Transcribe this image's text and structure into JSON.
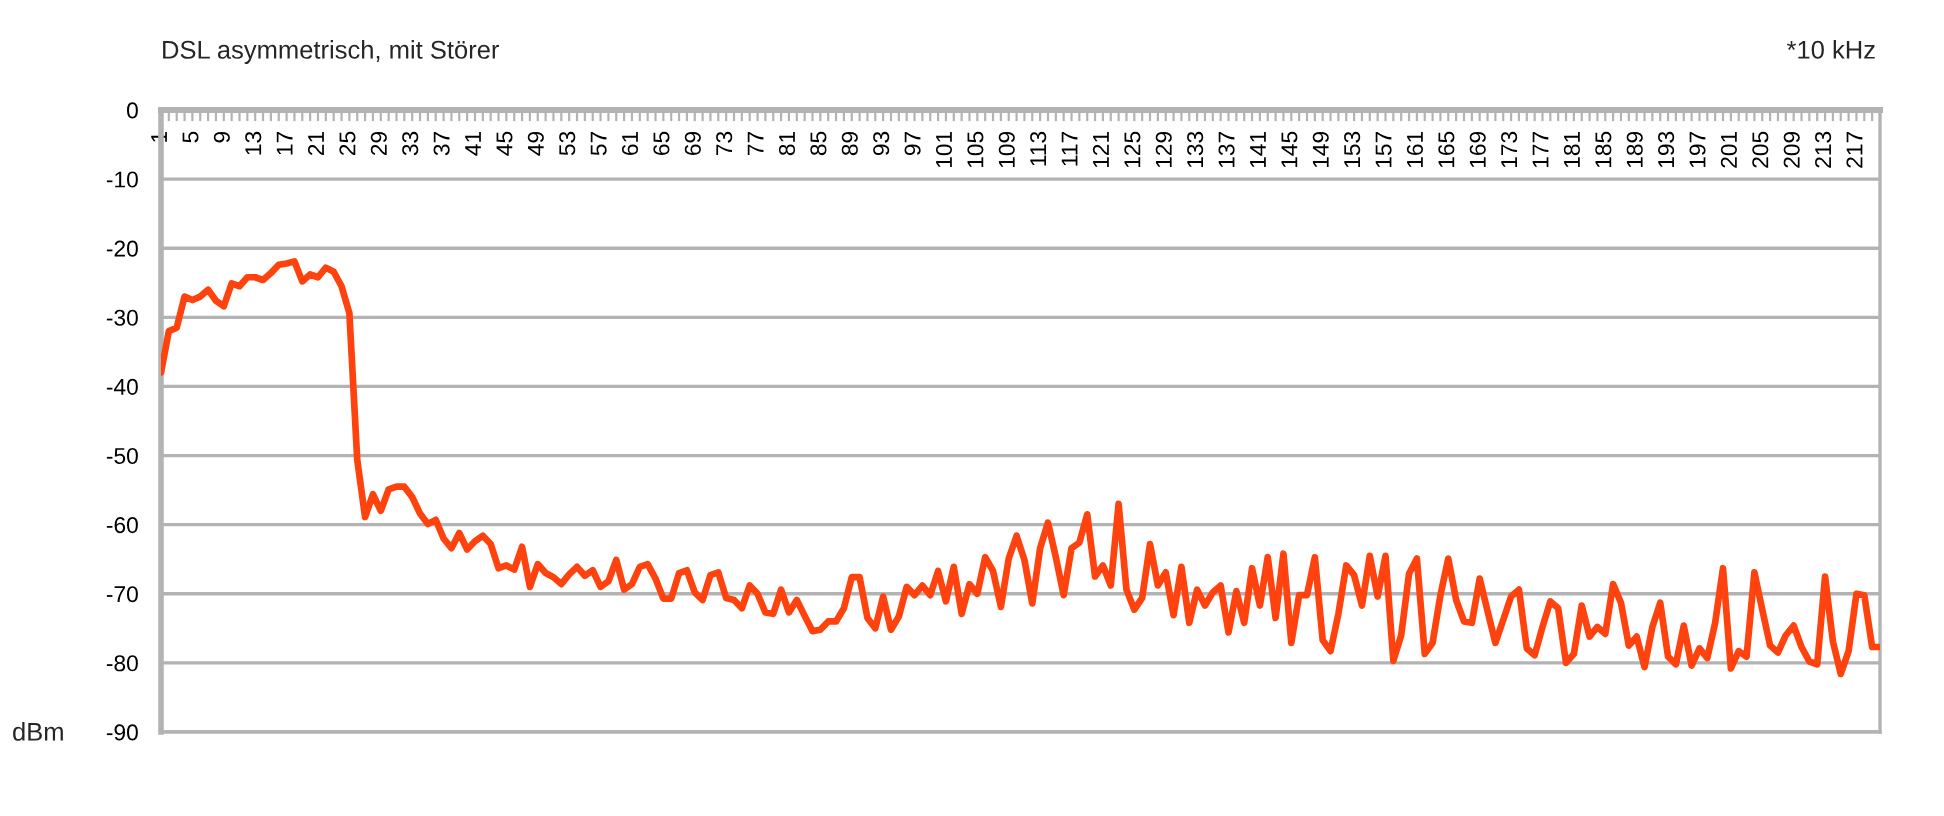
{
  "chart_data": {
    "type": "line",
    "title": "DSL asymmetrisch, mit Störer",
    "xlabel": "*10 kHz",
    "ylabel": "dBm",
    "categories": [
      "1",
      null,
      null,
      null,
      "5",
      null,
      null,
      null,
      "9",
      null,
      null,
      null,
      "13",
      null,
      null,
      null,
      "17",
      null,
      null,
      null,
      "21",
      null,
      null,
      null,
      "25",
      null,
      null,
      null,
      "29",
      null,
      null,
      null,
      "33",
      null,
      null,
      null,
      "37",
      null,
      null,
      null,
      "41",
      null,
      null,
      null,
      "45",
      null,
      null,
      null,
      "49",
      null,
      null,
      null,
      "53",
      null,
      null,
      null,
      "57",
      null,
      null,
      null,
      "61",
      null,
      null,
      null,
      "65",
      null,
      null,
      null,
      "69",
      null,
      null,
      null,
      "73",
      null,
      null,
      null,
      "77",
      null,
      null,
      null,
      "81",
      null,
      null,
      null,
      "85",
      null,
      null,
      null,
      "89",
      null,
      null,
      null,
      "93",
      null,
      null,
      null,
      "97",
      null,
      null,
      null,
      "101",
      null,
      null,
      null,
      "105",
      null,
      null,
      null,
      "109",
      null,
      null,
      null,
      "113",
      null,
      null,
      null,
      "117",
      null,
      null,
      null,
      "121",
      null,
      null,
      null,
      "125",
      null,
      null,
      null,
      "129",
      null,
      null,
      null,
      "133",
      null,
      null,
      null,
      "137",
      null,
      null,
      null,
      "141",
      null,
      null,
      null,
      "145",
      null,
      null,
      null,
      "149",
      null,
      null,
      null,
      "153",
      null,
      null,
      null,
      "157",
      null,
      null,
      null,
      "161",
      null,
      null,
      null,
      "165",
      null,
      null,
      null,
      "169",
      null,
      null,
      null,
      "173",
      null,
      null,
      null,
      "177",
      null,
      null,
      null,
      "181",
      null,
      null,
      null,
      "185",
      null,
      null,
      null,
      "189",
      null,
      null,
      null,
      "193",
      null,
      null,
      null,
      "197",
      null,
      null,
      null,
      "201",
      null,
      null,
      null,
      "205",
      null,
      null,
      null,
      "209",
      null,
      null,
      null,
      "213",
      null,
      null,
      null,
      "217",
      null,
      null,
      null
    ],
    "series": [
      {
        "color": "#ff420e",
        "values": [
          -38,
          -32,
          -31.5,
          -27,
          -27.5,
          -27,
          -26,
          -27.6,
          -28.4,
          -25.1,
          -25.5,
          -24.2,
          -24.2,
          -24.6,
          -23.6,
          -22.4,
          -22.2,
          -21.9,
          -24.8,
          -23.8,
          -24.2,
          -22.8,
          -23.4,
          -25.5,
          -29.4,
          -50.6,
          -58.9,
          -55.6,
          -58,
          -54.9,
          -54.5,
          -54.5,
          -56,
          -58.4,
          -59.9,
          -59.3,
          -62,
          -63.4,
          -61.2,
          -63.6,
          -62.4,
          -61.6,
          -62.8,
          -66.3,
          -65.9,
          -66.5,
          -63.2,
          -69,
          -65.7,
          -67,
          -67.6,
          -68.6,
          -67.2,
          -66.1,
          -67.4,
          -66.6,
          -69,
          -68.2,
          -65.1,
          -69.4,
          -68.6,
          -66.1,
          -65.7,
          -67.8,
          -70.7,
          -70.7,
          -67,
          -66.6,
          -69.8,
          -70.9,
          -67.3,
          -66.9,
          -70.6,
          -70.9,
          -72.1,
          -68.8,
          -70,
          -72.7,
          -72.9,
          -69.4,
          -72.7,
          -70.9,
          -73.2,
          -75.4,
          -75.2,
          -74,
          -74,
          -72.1,
          -67.6,
          -67.6,
          -73.5,
          -75,
          -70.4,
          -75.2,
          -73.3,
          -69,
          -70.2,
          -68.8,
          -70.2,
          -66.7,
          -71.1,
          -66.1,
          -72.9,
          -68.6,
          -70,
          -64.7,
          -66.7,
          -71.9,
          -64.9,
          -61.6,
          -65.1,
          -71.4,
          -63.4,
          -59.7,
          -64.7,
          -70.2,
          -63.4,
          -62.6,
          -58.5,
          -67.5,
          -65.9,
          -68.8,
          -57,
          -69.4,
          -72.3,
          -70.6,
          -62.8,
          -68.8,
          -66.9,
          -73.1,
          -66.1,
          -74.2,
          -69.4,
          -71.7,
          -69.8,
          -68.8,
          -75.6,
          -69.6,
          -74.2,
          -66.3,
          -71.7,
          -64.7,
          -73.5,
          -64.2,
          -77.1,
          -70.2,
          -70.2,
          -64.7,
          -76.7,
          -78.3,
          -72.9,
          -65.9,
          -67.3,
          -71.7,
          -64.5,
          -70.4,
          -64.5,
          -79.7,
          -76,
          -67.1,
          -64.9,
          -78.7,
          -77.1,
          -70.2,
          -64.9,
          -70.9,
          -74,
          -74.2,
          -67.8,
          -72.5,
          -77.1,
          -73.8,
          -70.4,
          -69.4,
          -77.9,
          -78.9,
          -74.8,
          -71.1,
          -72.1,
          -80,
          -78.7,
          -71.7,
          -76.2,
          -74.8,
          -75.8,
          -68.6,
          -71.3,
          -77.5,
          -76.2,
          -80.6,
          -74.8,
          -71.3,
          -79.1,
          -80.2,
          -74.6,
          -80.4,
          -77.9,
          -79.3,
          -74.2,
          -66.3,
          -80.8,
          -78.3,
          -79.1,
          -66.9,
          -72.3,
          -77.5,
          -78.5,
          -76,
          -74.6,
          -77.7,
          -79.8,
          -80.2,
          -67.5,
          -76.9,
          -81.6,
          -78.3,
          -70,
          -70.2,
          -77.7,
          -77.7
        ]
      }
    ],
    "ylim": [
      -90,
      0
    ],
    "yticks": [
      0,
      -10,
      -20,
      -30,
      -40,
      -50,
      -60,
      -70,
      -80,
      -90
    ],
    "grid": "y"
  }
}
